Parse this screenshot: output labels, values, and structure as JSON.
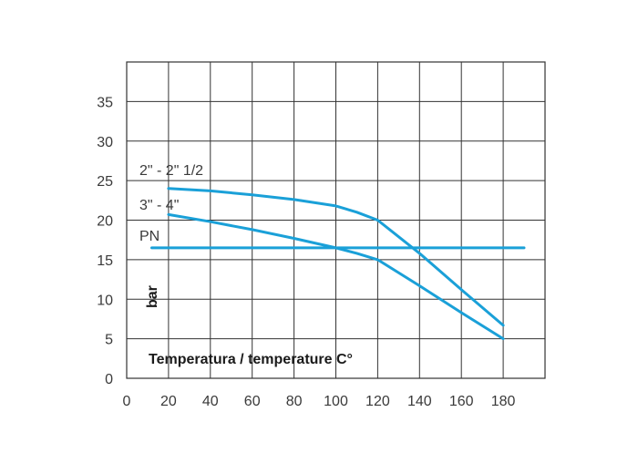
{
  "chart_data": {
    "type": "line",
    "xlabel": "Temperatura / temperature C°",
    "ylabel": "bar",
    "xlim": [
      0,
      200
    ],
    "ylim": [
      0,
      40
    ],
    "x_ticks": [
      0,
      20,
      40,
      60,
      80,
      100,
      120,
      140,
      160,
      180
    ],
    "y_ticks": [
      0,
      5,
      10,
      15,
      20,
      25,
      30,
      35
    ],
    "grid": true,
    "line_color": "#1aa0d8",
    "grid_color": "#333333",
    "series": [
      {
        "name": "2\" - 2\" 1/2",
        "x": [
          20,
          40,
          60,
          80,
          100,
          110,
          120,
          140,
          160,
          180
        ],
        "y": [
          24,
          23.7,
          23.2,
          22.6,
          21.8,
          21,
          20,
          15.8,
          11.2,
          6.7
        ]
      },
      {
        "name": "3\" - 4\"",
        "x": [
          20,
          40,
          60,
          80,
          100,
          110,
          120,
          140,
          160,
          180
        ],
        "y": [
          20.7,
          19.8,
          18.8,
          17.7,
          16.5,
          15.8,
          15,
          11.7,
          8.3,
          5
        ]
      },
      {
        "name": "PN",
        "x": [
          12,
          190
        ],
        "y": [
          16.5,
          16.5
        ]
      }
    ]
  }
}
